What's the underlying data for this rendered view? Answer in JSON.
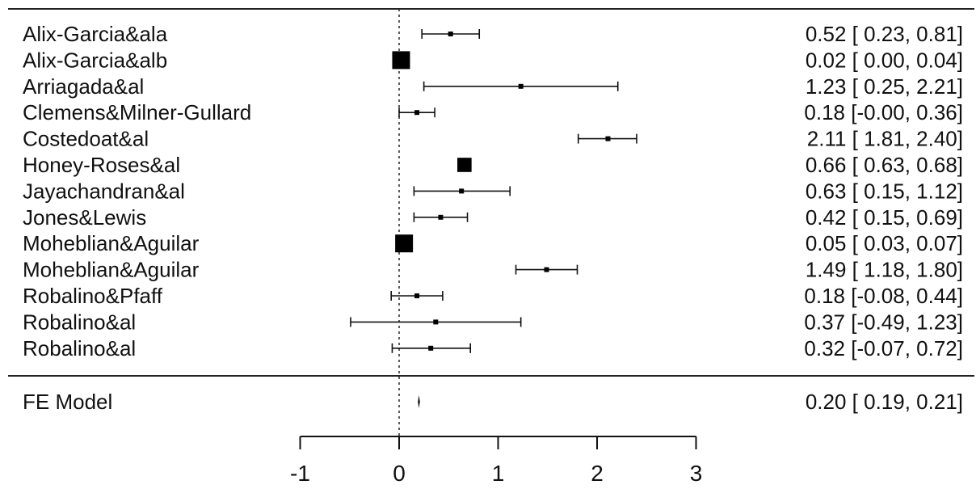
{
  "chart_data": {
    "type": "forest",
    "xlim": [
      -1,
      3
    ],
    "xticks": [
      "-1",
      "0",
      "1",
      "2",
      "3"
    ],
    "reference_line": 0,
    "studies": [
      {
        "label": "Alix-Garcia&ala",
        "estimate": 0.52,
        "ci": [
          0.23,
          0.81
        ],
        "text": "0.52 [ 0.23, 0.81]"
      },
      {
        "label": "Alix-Garcia&alb",
        "estimate": 0.02,
        "ci": [
          0.0,
          0.04
        ],
        "text": "0.02 [ 0.00, 0.04]"
      },
      {
        "label": "Arriagada&al",
        "estimate": 1.23,
        "ci": [
          0.25,
          2.21
        ],
        "text": "1.23 [ 0.25, 2.21]"
      },
      {
        "label": "Clemens&Milner-Gullard",
        "estimate": 0.18,
        "ci": [
          -0.0,
          0.36
        ],
        "text": "0.18 [-0.00, 0.36]"
      },
      {
        "label": "Costedoat&al",
        "estimate": 2.11,
        "ci": [
          1.81,
          2.4
        ],
        "text": "2.11 [ 1.81, 2.40]"
      },
      {
        "label": "Honey-Roses&al",
        "estimate": 0.66,
        "ci": [
          0.63,
          0.68
        ],
        "text": "0.66 [ 0.63, 0.68]"
      },
      {
        "label": "Jayachandran&al",
        "estimate": 0.63,
        "ci": [
          0.15,
          1.12
        ],
        "text": "0.63 [ 0.15, 1.12]"
      },
      {
        "label": "Jones&Lewis",
        "estimate": 0.42,
        "ci": [
          0.15,
          0.69
        ],
        "text": "0.42 [ 0.15, 0.69]"
      },
      {
        "label": "Moheblian&Aguilar",
        "estimate": 0.05,
        "ci": [
          0.03,
          0.07
        ],
        "text": "0.05 [ 0.03, 0.07]"
      },
      {
        "label": "Moheblian&Aguilar",
        "estimate": 1.49,
        "ci": [
          1.18,
          1.8
        ],
        "text": "1.49 [ 1.18, 1.80]"
      },
      {
        "label": "Robalino&Pfaff",
        "estimate": 0.18,
        "ci": [
          -0.08,
          0.44
        ],
        "text": "0.18 [-0.08, 0.44]"
      },
      {
        "label": "Robalino&al",
        "estimate": 0.37,
        "ci": [
          -0.49,
          1.23
        ],
        "text": "0.37 [-0.49, 1.23]"
      },
      {
        "label": "Robalino&al",
        "estimate": 0.32,
        "ci": [
          -0.07,
          0.72
        ],
        "text": "0.32 [-0.07, 0.72]"
      }
    ],
    "summary": {
      "label": "FE Model",
      "estimate": 0.2,
      "ci": [
        0.19,
        0.21
      ],
      "text": "0.20 [ 0.19, 0.21]"
    }
  }
}
